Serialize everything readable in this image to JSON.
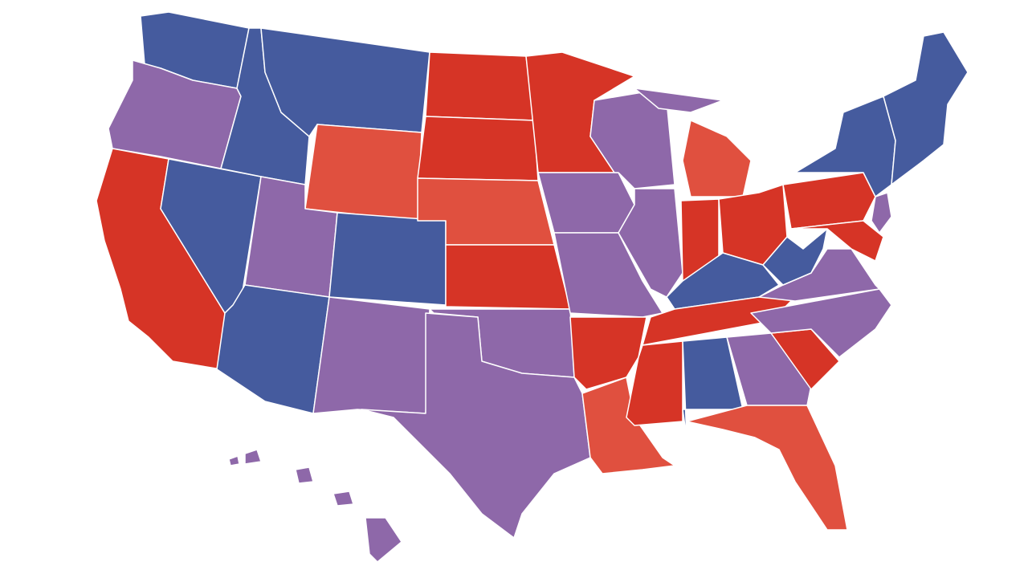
{
  "map": {
    "colors": [
      "#455b9e",
      "#d63426",
      "#e0503f",
      "#8e68a9"
    ],
    "border_color": "#ffffff"
  }
}
